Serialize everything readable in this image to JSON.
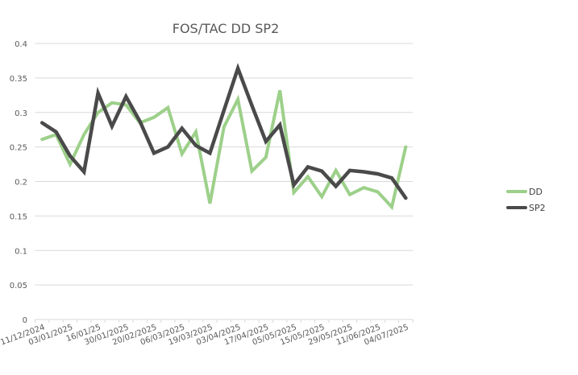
{
  "chart_data": {
    "type": "line",
    "title": "FOS/TAC DD SP2",
    "xlabel": "",
    "ylabel": "",
    "ylim": [
      0,
      0.4
    ],
    "yticks": [
      "0",
      "0.05",
      "0.1",
      "0.15",
      "0.2",
      "0.25",
      "0.3",
      "0.35",
      "0.4"
    ],
    "grid": true,
    "legend_position": "right",
    "x_tick_labels": [
      "11/12/2024",
      "03/01/2025",
      "16/01/25",
      "30/01/2025",
      "20/02/2025",
      "06/03/2025",
      "19/03/2025",
      "03/04/2025",
      "17/04/2025",
      "05/05/2025",
      "15/05/2025",
      "29/05/2025",
      "11/06/2025",
      "04/07/2025"
    ],
    "x_tick_label_every": 2,
    "num_points": 27,
    "series": [
      {
        "name": "DD",
        "color": "#9dd08a",
        "values": [
          0.261,
          0.268,
          0.225,
          0.268,
          0.3,
          0.314,
          0.311,
          0.285,
          0.293,
          0.307,
          0.24,
          0.272,
          0.168,
          0.279,
          0.319,
          0.215,
          0.235,
          0.332,
          0.184,
          0.207,
          0.178,
          0.216,
          0.181,
          0.191,
          0.185,
          0.163,
          0.25
        ]
      },
      {
        "name": "SP2",
        "color": "#4a4a4a",
        "values": [
          0.285,
          0.272,
          0.237,
          0.214,
          0.328,
          0.28,
          0.323,
          0.287,
          0.241,
          0.25,
          0.277,
          0.252,
          0.241,
          0.303,
          0.364,
          0.31,
          0.258,
          0.282,
          0.195,
          0.221,
          0.215,
          0.193,
          0.216,
          0.214,
          0.211,
          0.205,
          0.176
        ]
      }
    ]
  },
  "colors": {
    "grid": "#d9d9d9",
    "axis": "#d9d9d9",
    "text": "#595959"
  }
}
